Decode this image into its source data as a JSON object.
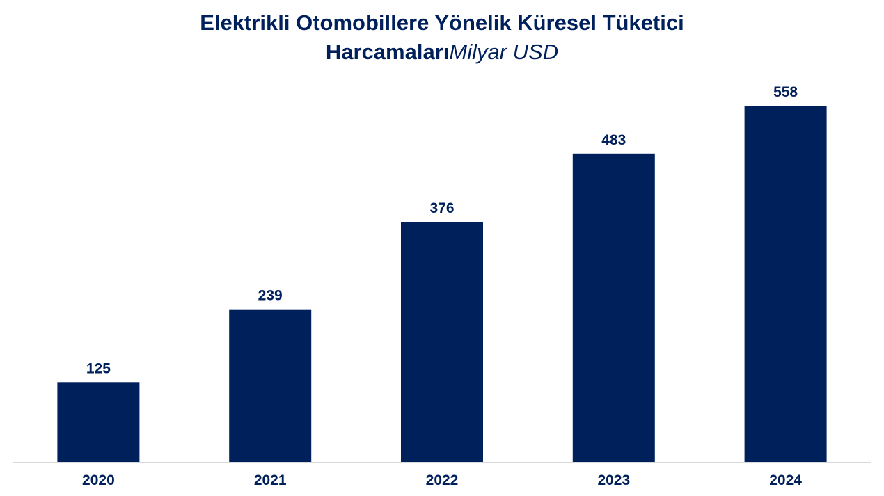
{
  "chart_data": {
    "type": "bar",
    "title_line1": "Elektrikli Otomobillere Yönelik Küresel Tüketici",
    "title_line2": "Harcamaları",
    "subtitle": "Milyar USD",
    "xlabel": "",
    "ylabel": "",
    "categories": [
      "2020",
      "2021",
      "2022",
      "2023",
      "2024"
    ],
    "values": [
      125,
      239,
      376,
      483,
      558
    ],
    "data_labels": [
      "125",
      "239",
      "376",
      "483",
      "558"
    ],
    "ylim": [
      0,
      558
    ],
    "grid": false,
    "legend": "none",
    "bar_color": "#00205b"
  }
}
